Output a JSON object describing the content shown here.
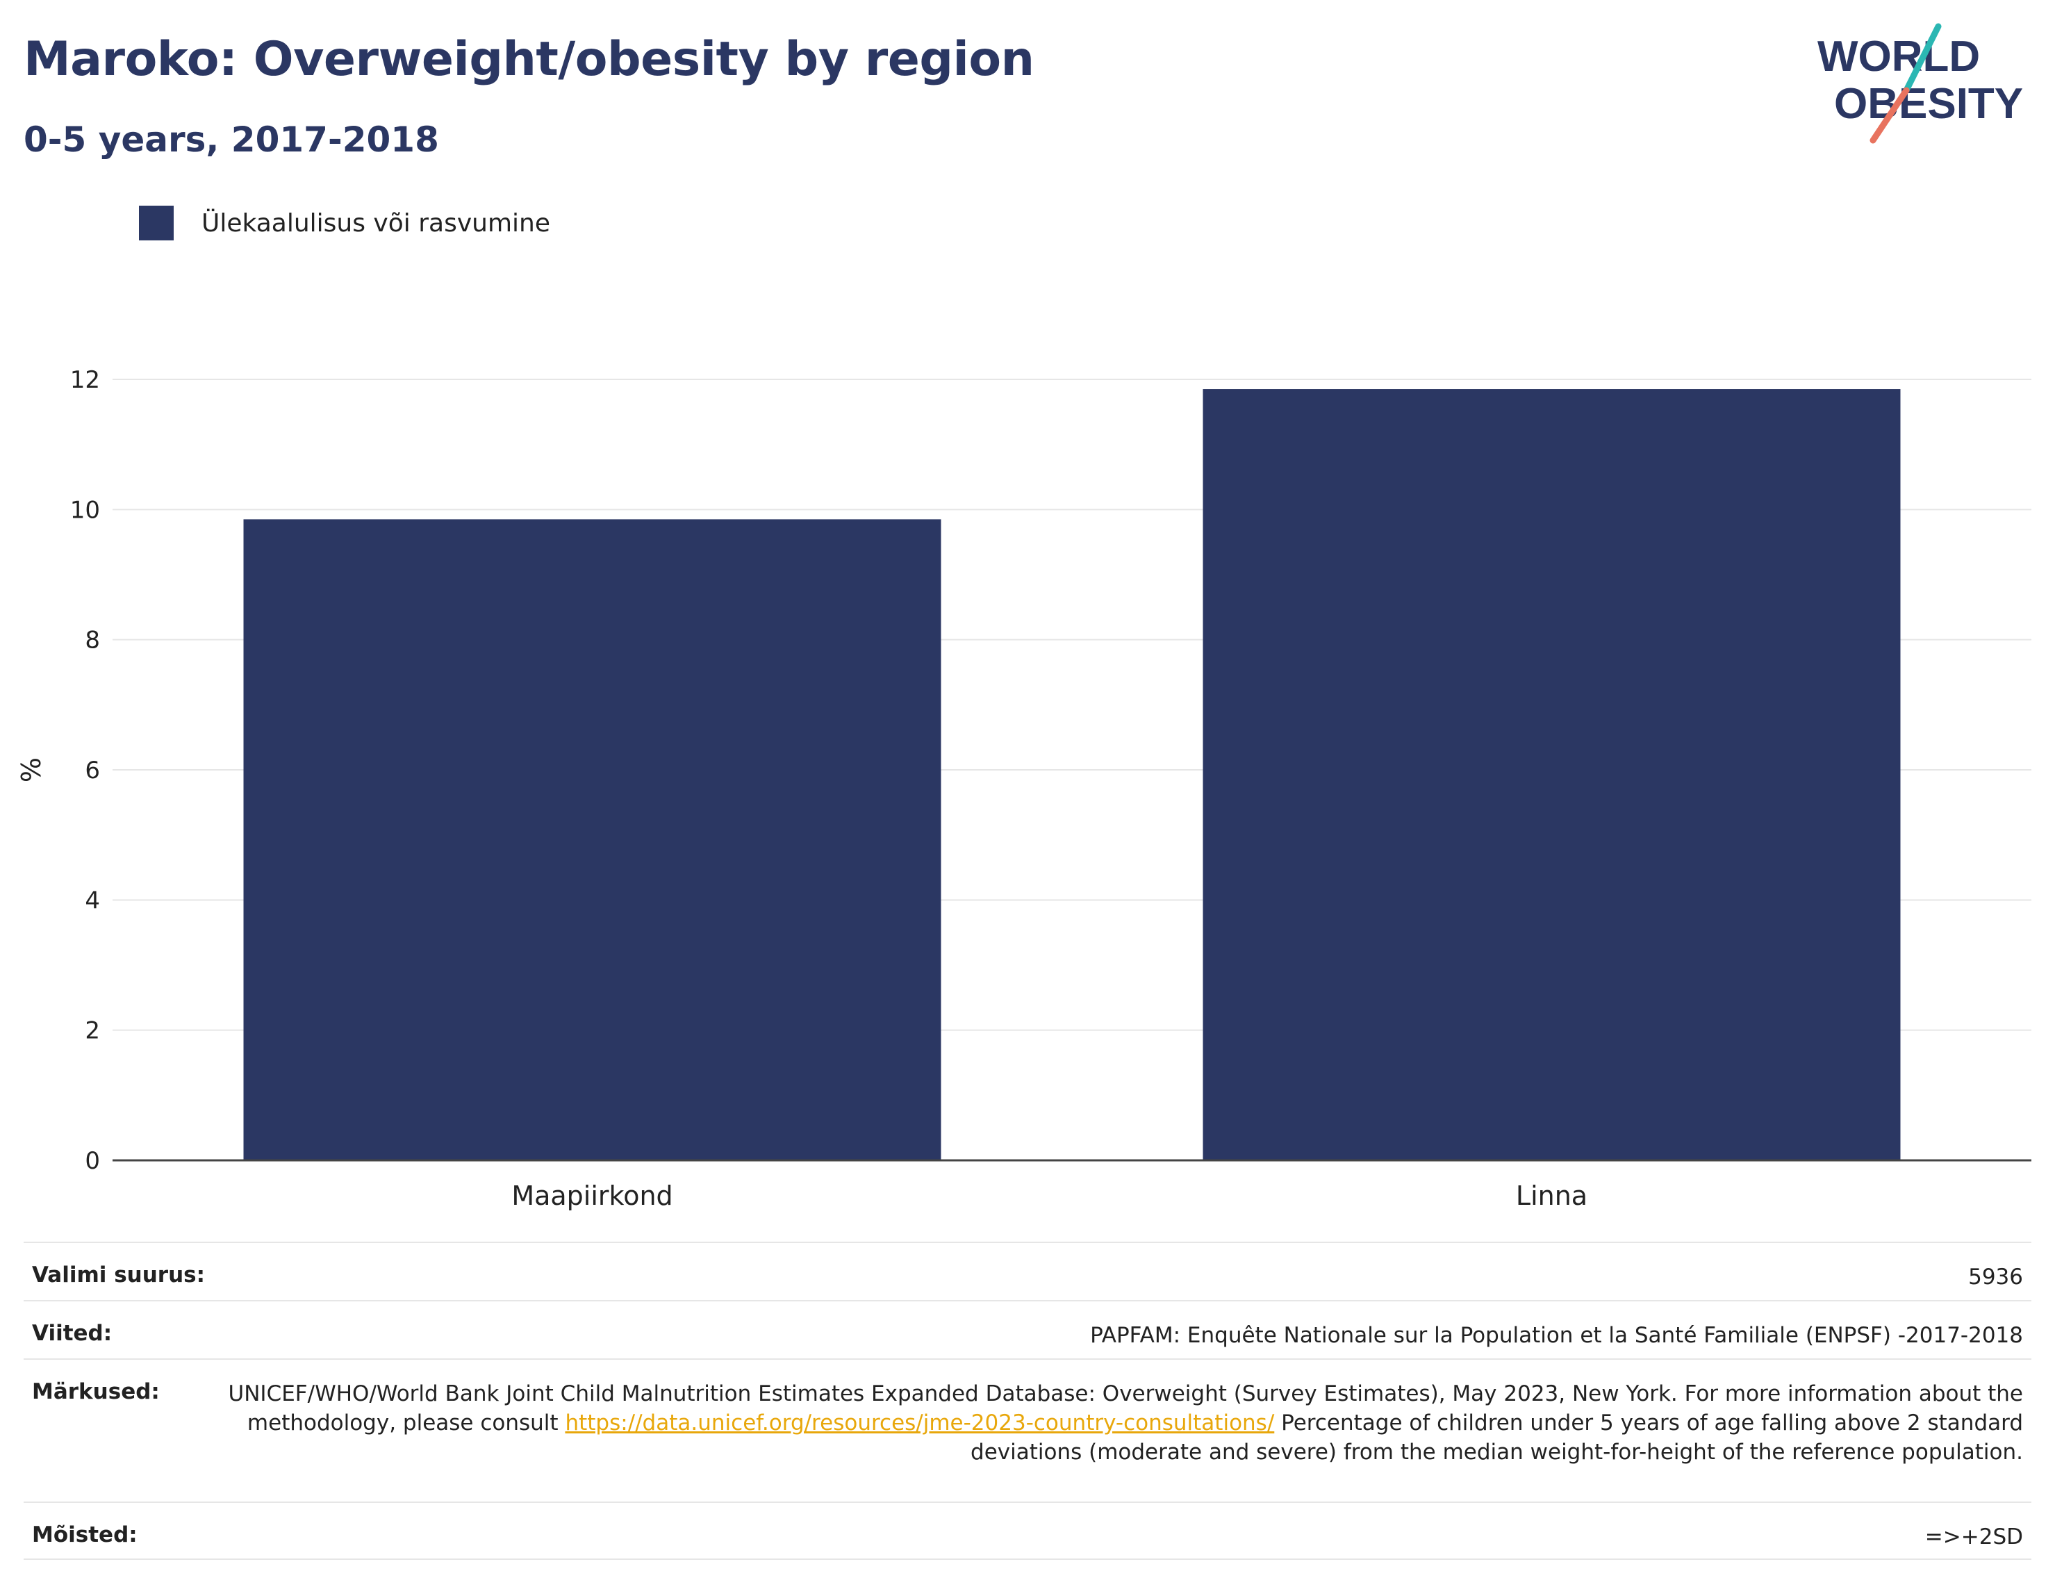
{
  "title": "Maroko: Overweight/obesity by region",
  "subtitle": "0-5 years, 2017-2018",
  "logo": {
    "line1": "WORLD",
    "line2": "OBESITY"
  },
  "legend": [
    {
      "label": "Ülekaalulisus või rasvumine",
      "color": "#2b3763"
    }
  ],
  "chart_data": {
    "type": "bar",
    "categories": [
      "Maapiirkond",
      "Linna"
    ],
    "series": [
      {
        "name": "Ülekaalulisus või rasvumine",
        "values": [
          9.85,
          11.85
        ],
        "color": "#2b3763"
      }
    ],
    "xlabel": "",
    "ylabel": "%",
    "ylim": [
      0,
      12
    ],
    "yticks": [
      0,
      2,
      4,
      6,
      8,
      10,
      12
    ],
    "grid": true,
    "legend_position": "top-left"
  },
  "meta": {
    "sample_size": {
      "label": "Valimi suurus:",
      "value": "5936"
    },
    "references": {
      "label": "Viited:",
      "value": "PAPFAM: Enquête Nationale sur la Population et la Santé Familiale (ENPSF) -2017-2018"
    },
    "notes": {
      "label": "Märkused:",
      "text1": "UNICEF/WHO/World Bank Joint Child Malnutrition Estimates Expanded Database: Overweight (Survey Estimates), May 2023, New York. For more information about the methodology, please consult ",
      "link": "https://data.unicef.org/resources/jme-2023-country-consultations/",
      "text2": "Percentage of children under 5 years of age falling above 2 standard deviations (moderate and severe) from the median weight-for-height of the reference population."
    },
    "definitions": {
      "label": "Mõisted:",
      "value": "=>+2SD"
    }
  },
  "colors": {
    "primary": "#2b3763",
    "teal": "#2bb7b3",
    "coral": "#e8735f",
    "link": "#e8a70b"
  }
}
